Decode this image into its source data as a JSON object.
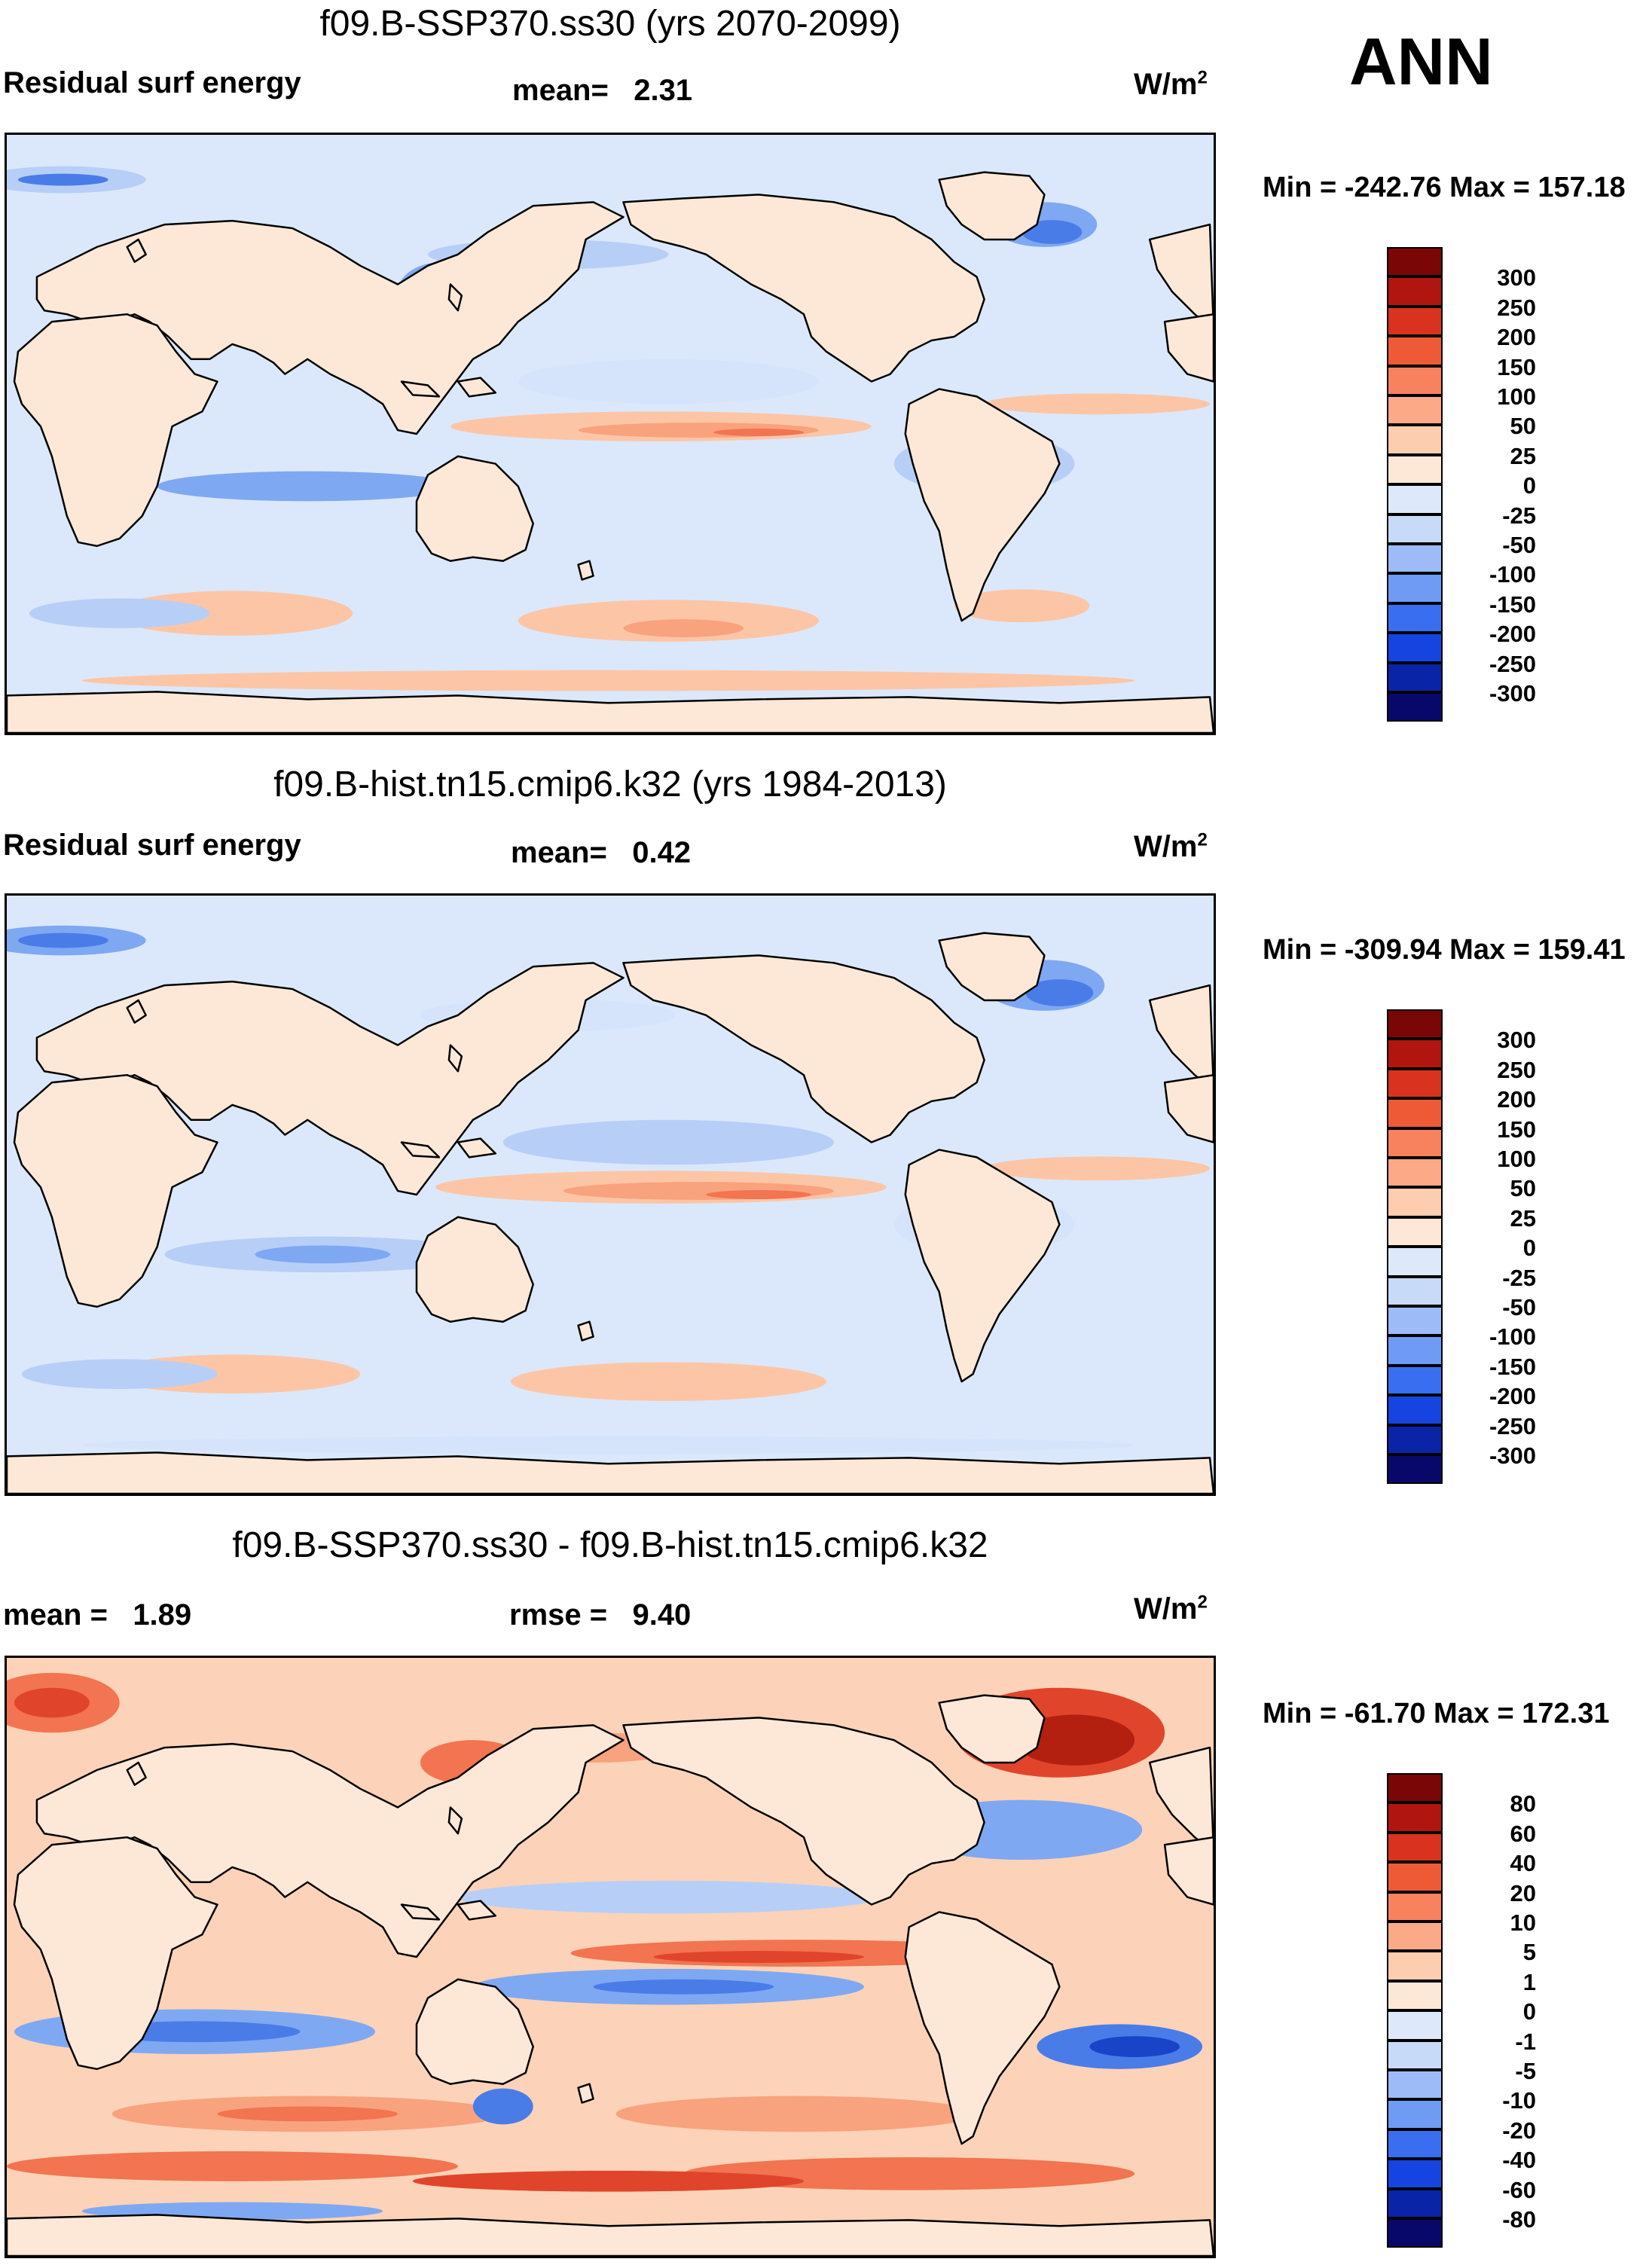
{
  "season": "ANN",
  "colors": {
    "sequence": [
      "#08086b",
      "#0a24a8",
      "#1644e0",
      "#3a6ef0",
      "#6f9bf5",
      "#9dbcf7",
      "#c7daf8",
      "#dde9fb",
      "#fde8d8",
      "#fdcdb0",
      "#fca988",
      "#f8815e",
      "#ef5a36",
      "#d9331f",
      "#b01510",
      "#7a0606"
    ],
    "land": "#fde8d8",
    "ocean_base_abs": "#dbe8fb",
    "ocean_base_diff": "#fcd3b8"
  },
  "panels": [
    {
      "id": "panel-future",
      "title": "f09.B-SSP370.ss30 (yrs 2070-2099)",
      "left_label": "Residual surf energy",
      "stat1_label": "mean=",
      "stat1_value": "2.31",
      "stat2_label": "",
      "stat2_value": "",
      "units": "W/m",
      "units_sup": "2",
      "minmax": "Min = -242.76 Max = 157.18",
      "colorbar_ticks": [
        "300",
        "250",
        "200",
        "150",
        "100",
        "50",
        "25",
        "0",
        "-25",
        "-50",
        "-100",
        "-150",
        "-200",
        "-250",
        "-300"
      ],
      "variant": "abs1"
    },
    {
      "id": "panel-historical",
      "title": "f09.B-hist.tn15.cmip6.k32 (yrs 1984-2013)",
      "left_label": "Residual surf energy",
      "stat1_label": "mean=",
      "stat1_value": "0.42",
      "stat2_label": "",
      "stat2_value": "",
      "units": "W/m",
      "units_sup": "2",
      "minmax": "Min = -309.94 Max = 159.41",
      "colorbar_ticks": [
        "300",
        "250",
        "200",
        "150",
        "100",
        "50",
        "25",
        "0",
        "-25",
        "-50",
        "-100",
        "-150",
        "-200",
        "-250",
        "-300"
      ],
      "variant": "abs2"
    },
    {
      "id": "panel-difference",
      "title": "f09.B-SSP370.ss30 - f09.B-hist.tn15.cmip6.k32",
      "left_label": "",
      "stat1_label": "mean =",
      "stat1_value": "1.89",
      "stat2_label": "rmse =",
      "stat2_value": "9.40",
      "units": "W/m",
      "units_sup": "2",
      "minmax": "Min = -61.70 Max = 172.31",
      "colorbar_ticks": [
        "80",
        "60",
        "40",
        "20",
        "10",
        "5",
        "1",
        "0",
        "-1",
        "-5",
        "-10",
        "-20",
        "-40",
        "-60",
        "-80"
      ],
      "variant": "diff"
    }
  ]
}
